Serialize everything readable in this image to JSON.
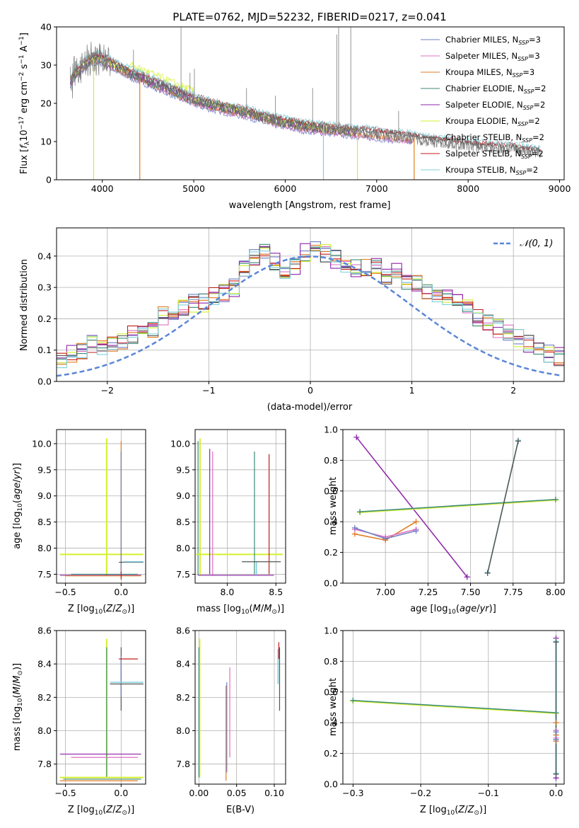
{
  "figure_title": "PLATE=0762, MJD=52232, FIBERID=0217, z=0.041",
  "colors": {
    "Chabrier MILES": "#6d7fc4",
    "Salpeter MILES": "#e06fc0",
    "Kroupa MILES": "#e07b20",
    "Chabrier ELODIE": "#3c8a78",
    "Salpeter ELODIE": "#8e24aa",
    "Kroupa ELODIE": "#d4ef2e",
    "Chabrier STELIB": "#555555",
    "Salpeter STELIB": "#c21e1e",
    "Kroupa STELIB": "#7fd0dc",
    "gauss": "#5b86d6"
  },
  "chart_data": [
    {
      "id": "spectrum",
      "type": "line",
      "xlabel": "wavelength [Angstrom, rest frame]",
      "ylabel": "Flux [f_λ10^-17 erg cm^-2 s^-1 A^-1]",
      "xlim": [
        3500,
        9050
      ],
      "ylim": [
        0,
        40
      ],
      "xticks": [
        4000,
        5000,
        6000,
        7000,
        8000,
        9000
      ],
      "yticks": [
        0,
        10,
        20,
        30,
        40
      ],
      "grid": false,
      "legend_position": "top-right",
      "legend": [
        {
          "name": "Chabrier MILES",
          "label": "Chabrier MILES, N",
          "nssp": "3"
        },
        {
          "name": "Salpeter MILES",
          "label": "Salpeter MILES, N",
          "nssp": "3"
        },
        {
          "name": "Kroupa MILES",
          "label": "Kroupa MILES, N",
          "nssp": "3"
        },
        {
          "name": "Chabrier ELODIE",
          "label": "Chabrier ELODIE, N",
          "nssp": "2"
        },
        {
          "name": "Salpeter ELODIE",
          "label": "Salpeter ELODIE, N",
          "nssp": "2"
        },
        {
          "name": "Kroupa ELODIE",
          "label": "Kroupa ELODIE, N",
          "nssp": "2"
        },
        {
          "name": "Chabrier STELIB",
          "label": "Chabrier STELIB, N",
          "nssp": "2"
        },
        {
          "name": "Salpeter STELIB",
          "label": "Salpeter STELIB, N",
          "nssp": "2"
        },
        {
          "name": "Kroupa STELIB",
          "label": "Kroupa STELIB, N",
          "nssp": "2"
        }
      ],
      "legend_sub": "SSP",
      "continuum": [
        [
          3650,
          26
        ],
        [
          3750,
          29
        ],
        [
          3850,
          31
        ],
        [
          3950,
          32
        ],
        [
          4050,
          31
        ],
        [
          4200,
          29
        ],
        [
          4400,
          27
        ],
        [
          4600,
          25
        ],
        [
          4800,
          23
        ],
        [
          5000,
          21
        ],
        [
          5200,
          19.5
        ],
        [
          5400,
          18.5
        ],
        [
          5600,
          17.5
        ],
        [
          5800,
          16
        ],
        [
          6000,
          15
        ],
        [
          6200,
          14
        ],
        [
          6400,
          13.5
        ],
        [
          6600,
          13
        ],
        [
          6800,
          12.5
        ],
        [
          7000,
          12
        ],
        [
          7200,
          11.5
        ],
        [
          7400,
          11
        ],
        [
          7600,
          10
        ],
        [
          7800,
          9.5
        ],
        [
          8000,
          9
        ],
        [
          8200,
          8.5
        ],
        [
          8500,
          8
        ],
        [
          8800,
          7
        ]
      ],
      "spikes": [
        {
          "x": 4341,
          "y": 34
        },
        {
          "x": 4861,
          "y": 40
        },
        {
          "x": 4959,
          "y": 28
        },
        {
          "x": 5007,
          "y": 29
        },
        {
          "x": 5200,
          "y": 19
        },
        {
          "x": 5577,
          "y": 24
        },
        {
          "x": 5893,
          "y": 22
        },
        {
          "x": 6300,
          "y": 24
        },
        {
          "x": 6563,
          "y": 38
        },
        {
          "x": 6584,
          "y": 40
        },
        {
          "x": 6717,
          "y": 40
        },
        {
          "x": 7240,
          "y": 18
        }
      ],
      "dips": [
        {
          "x": 3905,
          "y": 0,
          "series": "Kroupa ELODIE"
        },
        {
          "x": 4410,
          "y": 0,
          "series": "Kroupa MILES"
        },
        {
          "x": 6418,
          "y": 0,
          "series": "Kroupa STELIB"
        },
        {
          "x": 6790,
          "y": 0,
          "series": "Kroupa ELODIE"
        },
        {
          "x": 7410,
          "y": 0,
          "series": "Kroupa MILES"
        }
      ]
    },
    {
      "id": "residuals",
      "type": "line",
      "xlabel": "(data-model)/error",
      "ylabel": "Normed distribution",
      "xlim": [
        -2.5,
        2.5
      ],
      "ylim": [
        0,
        0.49
      ],
      "xticks": [
        -2,
        -1,
        0,
        1,
        2
      ],
      "yticks": [
        0.0,
        0.1,
        0.2,
        0.3,
        0.4
      ],
      "grid": true,
      "legend_position": "top-right",
      "legend_label": "𝒩(0, 1)",
      "bin_edges_start": -2.5,
      "bin_width": 0.1,
      "base_hist": [
        0.07,
        0.09,
        0.1,
        0.12,
        0.11,
        0.12,
        0.13,
        0.15,
        0.16,
        0.17,
        0.21,
        0.22,
        0.24,
        0.25,
        0.25,
        0.27,
        0.28,
        0.3,
        0.36,
        0.4,
        0.42,
        0.38,
        0.35,
        0.37,
        0.41,
        0.42,
        0.41,
        0.39,
        0.37,
        0.36,
        0.36,
        0.37,
        0.34,
        0.35,
        0.32,
        0.31,
        0.29,
        0.28,
        0.27,
        0.25,
        0.24,
        0.2,
        0.19,
        0.17,
        0.15,
        0.14,
        0.12,
        0.1,
        0.09,
        0.08
      ]
    },
    {
      "id": "age_vs_Z",
      "type": "scatter",
      "xlabel": "Z [log10(Z/Z⊙)]",
      "ylabel": "age [log10(age/yr)]",
      "xlim": [
        -0.58,
        0.22
      ],
      "ylim": [
        7.33,
        10.27
      ],
      "xticks": [
        -0.5,
        0.0
      ],
      "yticks": [
        7.5,
        8.0,
        8.5,
        9.0,
        9.5,
        10.0
      ],
      "grid": true
    },
    {
      "id": "age_vs_mass",
      "type": "scatter",
      "xlabel": "mass [log10(M/M⊙)]",
      "ylabel": "",
      "xlim": [
        7.67,
        8.6
      ],
      "ylim": [
        7.33,
        10.27
      ],
      "xticks": [
        8.0,
        8.5
      ],
      "yticks": [
        7.5,
        8.0,
        8.5,
        9.0,
        9.5,
        10.0
      ],
      "grid": true
    },
    {
      "id": "weight_vs_age",
      "type": "line",
      "xlabel": "age [log10(age/yr)]",
      "ylabel": "mass weight",
      "xlim": [
        6.75,
        8.05
      ],
      "ylim": [
        0,
        1
      ],
      "xticks": [
        7.0,
        7.25,
        7.5,
        7.75,
        8.0
      ],
      "yticks": [
        0.0,
        0.2,
        0.4,
        0.6,
        0.8,
        1.0
      ],
      "grid": true,
      "series": [
        {
          "name": "Salpeter ELODIE",
          "x": [
            6.83,
            7.48
          ],
          "y": [
            0.95,
            0.04
          ]
        },
        {
          "name": "Kroupa ELODIE",
          "x": [
            6.85,
            8.0
          ],
          "y": [
            0.46,
            0.54
          ]
        },
        {
          "name": "Chabrier ELODIE",
          "x": [
            6.85,
            8.0
          ],
          "y": [
            0.465,
            0.545
          ]
        },
        {
          "name": "Kroupa MILES",
          "x": [
            6.82,
            7.0,
            7.18
          ],
          "y": [
            0.32,
            0.28,
            0.4
          ]
        },
        {
          "name": "Salpeter MILES",
          "x": [
            6.82,
            7.0,
            7.18
          ],
          "y": [
            0.35,
            0.3,
            0.35
          ]
        },
        {
          "name": "Chabrier MILES",
          "x": [
            6.82,
            7.0,
            7.18
          ],
          "y": [
            0.36,
            0.29,
            0.34
          ]
        },
        {
          "name": "Kroupa STELIB",
          "x": [
            7.6,
            7.78
          ],
          "y": [
            0.07,
            0.93
          ]
        },
        {
          "name": "Chabrier STELIB",
          "x": [
            7.6,
            7.78
          ],
          "y": [
            0.065,
            0.925
          ]
        }
      ]
    },
    {
      "id": "mass_vs_Z",
      "type": "scatter",
      "xlabel": "Z [log10(Z/Z⊙)]",
      "ylabel": "mass [log10(M/M⊙)]",
      "xlim": [
        -0.58,
        0.22
      ],
      "ylim": [
        7.68,
        8.6
      ],
      "xticks": [
        -0.5,
        0.0
      ],
      "yticks": [
        7.8,
        8.0,
        8.2,
        8.4,
        8.6
      ],
      "grid": true
    },
    {
      "id": "mass_vs_ebv",
      "type": "scatter",
      "xlabel": "E(B-V)",
      "ylabel": "",
      "xlim": [
        -0.005,
        0.115
      ],
      "ylim": [
        7.68,
        8.6
      ],
      "xticks": [
        0.0,
        0.05,
        0.1
      ],
      "yticks": [
        7.8,
        8.0,
        8.2,
        8.4,
        8.6
      ],
      "grid": true
    },
    {
      "id": "weight_vs_Z",
      "type": "line",
      "xlabel": "Z [log10(Z/Z⊙)]",
      "ylabel": "mass weight",
      "xlim": [
        -0.315,
        0.012
      ],
      "ylim": [
        0,
        1
      ],
      "xticks": [
        -0.3,
        -0.2,
        -0.1,
        0.0
      ],
      "yticks": [
        0.0,
        0.2,
        0.4,
        0.6,
        0.8,
        1.0
      ],
      "grid": true,
      "series": [
        {
          "name": "Kroupa ELODIE",
          "x": [
            -0.3,
            0.0
          ],
          "y": [
            0.54,
            0.46
          ]
        },
        {
          "name": "Chabrier ELODIE",
          "x": [
            -0.3,
            0.0
          ],
          "y": [
            0.545,
            0.465
          ]
        }
      ]
    }
  ]
}
